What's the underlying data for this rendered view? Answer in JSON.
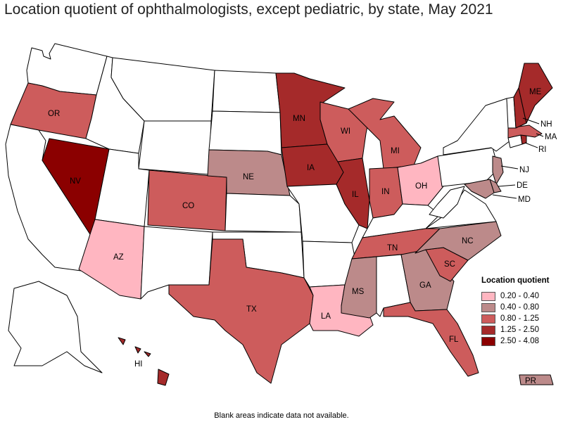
{
  "title": "Location quotient of ophthalmologists, except pediatric, by state, May 2021",
  "note": "Blank areas indicate data not available.",
  "legend": {
    "title": "Location quotient",
    "items": [
      {
        "label": "0.20 - 0.40",
        "color": "#ffb6c1"
      },
      {
        "label": "0.40 - 0.80",
        "color": "#bc8a8a"
      },
      {
        "label": "0.80 - 1.25",
        "color": "#cd5c5c"
      },
      {
        "label": "1.25 - 2.50",
        "color": "#a52a2a"
      },
      {
        "label": "2.50 - 4.08",
        "color": "#8b0000"
      }
    ]
  },
  "colors": {
    "na": "#ffffff",
    "c1": "#ffb6c1",
    "c2": "#bc8a8a",
    "c3": "#cd5c5c",
    "c4": "#a52a2a",
    "c5": "#8b0000"
  },
  "states": {
    "OR": {
      "label": "OR",
      "class": "0.80 - 1.25"
    },
    "NV": {
      "label": "NV",
      "class": "2.50 - 4.08"
    },
    "AZ": {
      "label": "AZ",
      "class": "0.20 - 0.40"
    },
    "CO": {
      "label": "CO",
      "class": "0.80 - 1.25"
    },
    "NE": {
      "label": "NE",
      "class": "0.40 - 0.80"
    },
    "MN": {
      "label": "MN",
      "class": "1.25 - 2.50"
    },
    "IA": {
      "label": "IA",
      "class": "1.25 - 2.50"
    },
    "WI": {
      "label": "WI",
      "class": "0.80 - 1.25"
    },
    "IL": {
      "label": "IL",
      "class": "1.25 - 2.50"
    },
    "MI": {
      "label": "MI",
      "class": "0.80 - 1.25"
    },
    "IN": {
      "label": "IN",
      "class": "0.80 - 1.25"
    },
    "OH": {
      "label": "OH",
      "class": "0.20 - 0.40"
    },
    "TX": {
      "label": "TX",
      "class": "0.80 - 1.25"
    },
    "LA": {
      "label": "LA",
      "class": "0.20 - 0.40"
    },
    "MS": {
      "label": "MS",
      "class": "0.40 - 0.80"
    },
    "TN": {
      "label": "TN",
      "class": "0.80 - 1.25"
    },
    "GA": {
      "label": "GA",
      "class": "0.40 - 0.80"
    },
    "FL": {
      "label": "FL",
      "class": "0.80 - 1.25"
    },
    "SC": {
      "label": "SC",
      "class": "0.80 - 1.25"
    },
    "NC": {
      "label": "NC",
      "class": "0.40 - 0.80"
    },
    "ME": {
      "label": "ME",
      "class": "1.25 - 2.50"
    },
    "NH": {
      "label": "NH",
      "class": "1.25 - 2.50"
    },
    "MA": {
      "label": "MA",
      "class": "0.80 - 1.25"
    },
    "RI": {
      "label": "RI",
      "class": "1.25 - 2.50"
    },
    "NJ": {
      "label": "NJ",
      "class": "0.40 - 0.80"
    },
    "DE": {
      "label": "DE",
      "class": "0.40 - 0.80"
    },
    "MD": {
      "label": "MD",
      "class": "0.40 - 0.80"
    },
    "HI": {
      "label": "HI",
      "class": "1.25 - 2.50"
    },
    "PR": {
      "label": "PR",
      "class": "0.40 - 0.80"
    }
  }
}
